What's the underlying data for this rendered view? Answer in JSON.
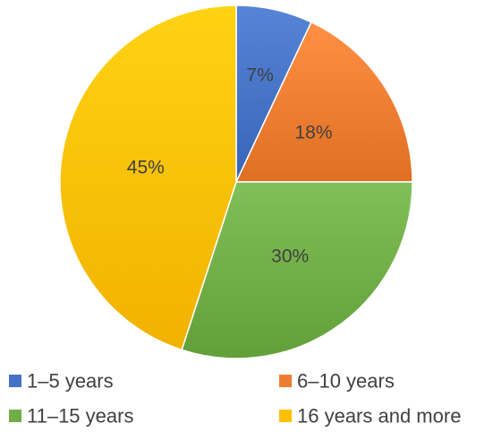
{
  "chart_data": {
    "type": "pie",
    "title": "",
    "categories": [
      "1–5 years",
      "6–10 years",
      "11–15 years",
      "16 years and more"
    ],
    "values": [
      7,
      18,
      30,
      45
    ],
    "labels": [
      "7%",
      "18%",
      "30%",
      "45%"
    ],
    "colors": [
      "#4472C4",
      "#ED7D31",
      "#70AD47",
      "#FFC000"
    ],
    "legend_position": "bottom",
    "start_angle": "12 o'clock",
    "direction": "clockwise"
  }
}
